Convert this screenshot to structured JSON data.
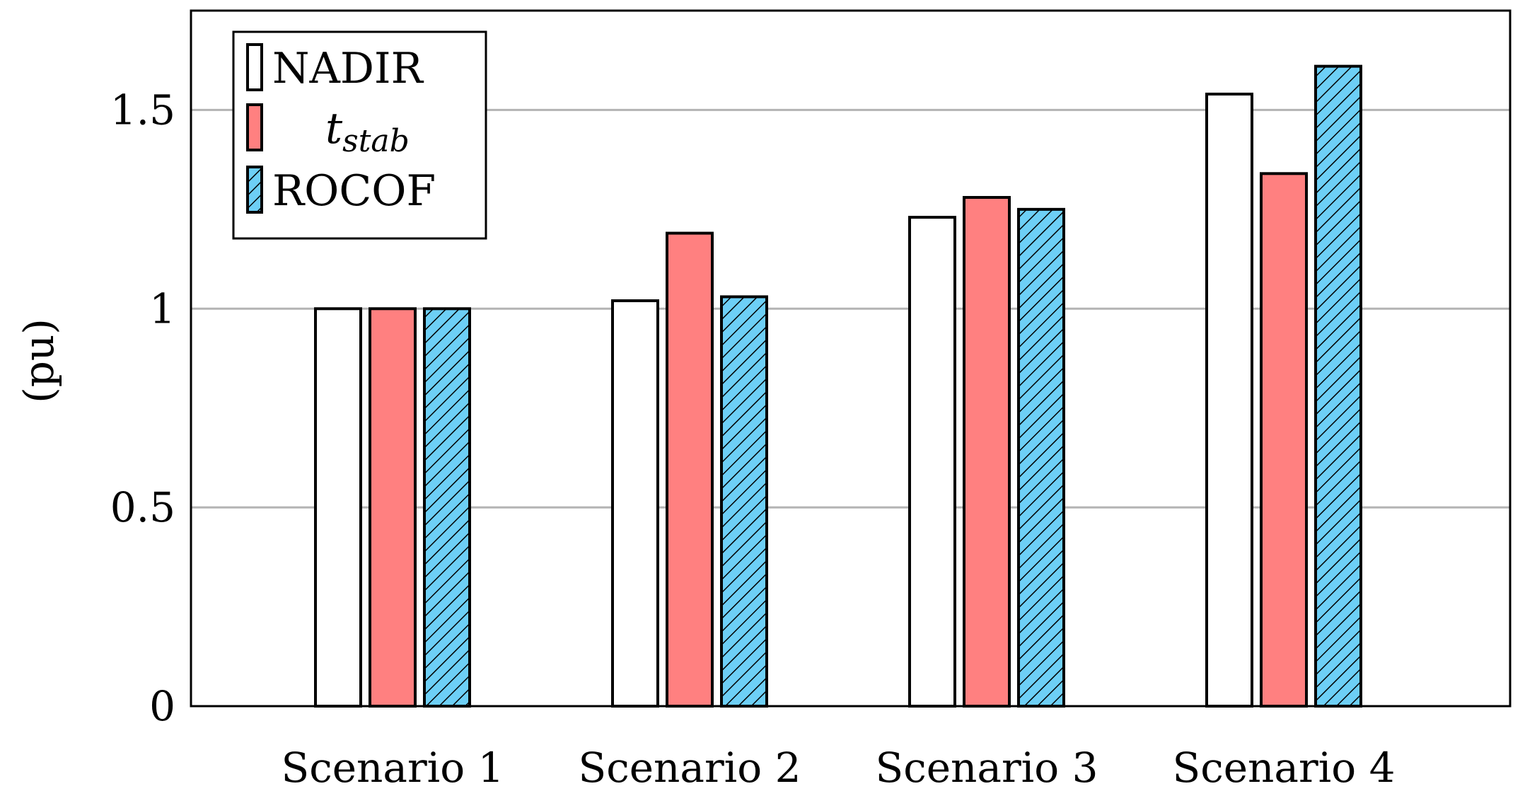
{
  "chart_data": {
    "type": "bar",
    "title": "",
    "xlabel": "",
    "ylabel": "(pu)",
    "categories": [
      "Scenario 1",
      "Scenario 2",
      "Scenario 3",
      "Scenario 4"
    ],
    "series": [
      {
        "name": "NADIR",
        "name_main": "NADIR",
        "name_sub": "",
        "fill": "#ffffff",
        "pattern": "none",
        "values": [
          1.0,
          1.02,
          1.23,
          1.54
        ]
      },
      {
        "name": "t_stab",
        "name_main": "t",
        "name_sub": "stab",
        "fill": "#ff8080",
        "pattern": "none",
        "values": [
          1.0,
          1.19,
          1.28,
          1.34
        ]
      },
      {
        "name": "ROCOF",
        "name_main": "ROCOF",
        "name_sub": "",
        "fill": "#6dcff6",
        "pattern": "hatch",
        "values": [
          1.0,
          1.03,
          1.25,
          1.61
        ]
      }
    ],
    "ylim": [
      0,
      1.75
    ],
    "yticks": [
      0,
      0.5,
      1,
      1.5
    ],
    "ytick_labels": [
      "0",
      "0.5",
      "1",
      "1.5"
    ],
    "grid": "y-major",
    "legend_position": "top-left"
  }
}
